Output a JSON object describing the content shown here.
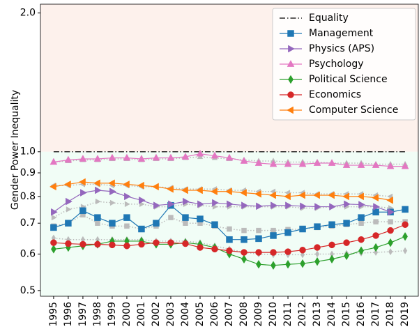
{
  "chart_data": {
    "type": "line",
    "ylabel": "Gender Power Inequality",
    "yscale": "log",
    "x": [
      1995,
      1996,
      1997,
      1998,
      1999,
      2000,
      2001,
      2002,
      2003,
      2004,
      2005,
      2006,
      2007,
      2008,
      2009,
      2010,
      2011,
      2012,
      2013,
      2014,
      2015,
      2016,
      2017,
      2018,
      2019
    ],
    "xlim": [
      1994.1,
      2019.9
    ],
    "xticks": [
      1995,
      1996,
      1997,
      1998,
      1999,
      2000,
      2001,
      2002,
      2003,
      2004,
      2005,
      2006,
      2007,
      2008,
      2009,
      2010,
      2011,
      2012,
      2013,
      2014,
      2015,
      2016,
      2017,
      2018,
      2019
    ],
    "ylim": [
      0.486,
      2.09
    ],
    "yticks": [
      0.5,
      0.6,
      0.7,
      0.8,
      0.9,
      {
        "value": 1,
        "label": "1.0"
      },
      {
        "value": 2,
        "label": "2.0"
      }
    ],
    "legend": "upper right",
    "region_colors": [
      "#fdf1ec",
      "#f1fdf6"
    ],
    "series": [
      {
        "name": "Equality",
        "color": "#000000",
        "style": "dashdot",
        "marker": "none",
        "values": [
          1,
          1,
          1,
          1,
          1,
          1,
          1,
          1,
          1,
          1,
          1,
          1,
          1,
          1,
          1,
          1,
          1,
          1,
          1,
          1,
          1,
          1,
          1,
          1,
          1
        ]
      },
      {
        "color": "#bbbbbb",
        "style": "dotted",
        "marker": "right",
        "values": [
          0.72,
          0.75,
          0.76,
          0.78,
          0.775,
          0.77,
          0.77,
          0.76,
          0.76,
          0.77,
          0.765,
          0.76,
          0.76,
          0.76,
          0.76,
          0.76,
          0.76,
          0.755,
          0.755,
          0.76,
          0.76,
          0.76,
          0.76,
          0.755,
          null
        ]
      },
      {
        "color": "#bbbbbb",
        "style": "dotted",
        "marker": "up",
        "values": [
          0.95,
          0.955,
          0.96,
          0.96,
          0.965,
          0.965,
          0.96,
          0.965,
          0.965,
          0.97,
          0.975,
          0.97,
          0.965,
          0.96,
          0.955,
          0.955,
          0.95,
          0.95,
          0.95,
          0.945,
          0.945,
          0.945,
          0.94,
          0.94,
          0.94
        ]
      },
      {
        "color": "#bbbbbb",
        "style": "dotted",
        "marker": "left",
        "values": [
          0.845,
          0.845,
          0.85,
          0.85,
          0.845,
          0.845,
          0.84,
          0.84,
          0.835,
          0.83,
          0.83,
          0.83,
          0.825,
          0.825,
          0.82,
          0.82,
          0.815,
          0.815,
          0.81,
          0.81,
          0.81,
          0.81,
          0.805,
          0.8,
          null
        ]
      },
      {
        "color": "#bbbbbb",
        "style": "dotted",
        "marker": "square",
        "values": [
          0.69,
          0.7,
          0.73,
          0.7,
          0.69,
          0.69,
          0.68,
          0.69,
          0.72,
          0.7,
          0.7,
          0.69,
          0.68,
          0.675,
          0.675,
          0.675,
          0.678,
          0.68,
          0.685,
          0.69,
          0.695,
          0.7,
          0.705,
          0.705,
          0.705
        ]
      },
      {
        "color": "#bbbbbb",
        "style": "dotted",
        "marker": "diamond",
        "values": [
          0.65,
          0.645,
          0.645,
          0.645,
          0.645,
          0.645,
          0.645,
          0.64,
          0.64,
          0.64,
          0.635,
          0.625,
          0.615,
          0.605,
          0.6,
          0.598,
          0.598,
          0.598,
          0.6,
          0.6,
          0.602,
          0.603,
          0.605,
          0.607,
          0.61
        ]
      },
      {
        "name": "Management",
        "color": "#1f77b4",
        "style": "solid",
        "marker": "square",
        "values": [
          0.685,
          0.7,
          0.745,
          0.72,
          0.7,
          0.72,
          0.68,
          0.7,
          0.765,
          0.72,
          0.715,
          0.695,
          0.645,
          0.645,
          0.648,
          0.658,
          0.668,
          0.68,
          0.688,
          0.695,
          0.7,
          0.72,
          0.74,
          0.74,
          0.75
        ]
      },
      {
        "name": "Physics (APS)",
        "color": "#9467bd",
        "style": "solid",
        "marker": "right",
        "values": [
          0.74,
          0.78,
          0.815,
          0.825,
          0.82,
          0.8,
          0.785,
          0.765,
          0.77,
          0.78,
          0.77,
          0.775,
          0.77,
          0.765,
          0.762,
          0.765,
          0.765,
          0.762,
          0.76,
          0.76,
          0.77,
          0.768,
          0.76,
          0.74,
          null
        ]
      },
      {
        "name": "Psychology",
        "color": "#e377c2",
        "style": "solid",
        "marker": "up",
        "values": [
          0.95,
          0.96,
          0.965,
          0.965,
          0.97,
          0.97,
          0.965,
          0.97,
          0.97,
          0.975,
          0.99,
          0.98,
          0.97,
          0.955,
          0.945,
          0.94,
          0.94,
          0.94,
          0.945,
          0.945,
          0.935,
          0.935,
          0.935,
          0.93,
          0.93
        ]
      },
      {
        "name": "Political Science",
        "color": "#2ca02c",
        "style": "solid",
        "marker": "diamond",
        "values": [
          0.615,
          0.62,
          0.625,
          0.63,
          0.64,
          0.64,
          0.64,
          0.63,
          0.63,
          0.635,
          0.63,
          0.62,
          0.6,
          0.585,
          0.57,
          0.567,
          0.57,
          0.572,
          0.578,
          0.585,
          0.595,
          0.61,
          0.62,
          0.635,
          0.655
        ]
      },
      {
        "name": "Economics",
        "color": "#d62728",
        "style": "solid",
        "marker": "circle",
        "values": [
          0.635,
          0.632,
          0.63,
          0.63,
          0.628,
          0.625,
          0.63,
          0.635,
          0.635,
          0.632,
          0.62,
          0.615,
          0.61,
          0.605,
          0.605,
          0.605,
          0.607,
          0.612,
          0.62,
          0.628,
          0.635,
          0.645,
          0.658,
          0.675,
          0.695
        ]
      },
      {
        "name": "Computer Science",
        "color": "#ff7f0e",
        "style": "solid",
        "marker": "left",
        "values": [
          0.84,
          0.85,
          0.86,
          0.855,
          0.855,
          0.85,
          0.845,
          0.84,
          0.83,
          0.825,
          0.825,
          0.82,
          0.82,
          0.815,
          0.81,
          0.805,
          0.8,
          0.805,
          0.805,
          0.805,
          0.8,
          0.8,
          0.795,
          0.785,
          null
        ]
      }
    ]
  }
}
